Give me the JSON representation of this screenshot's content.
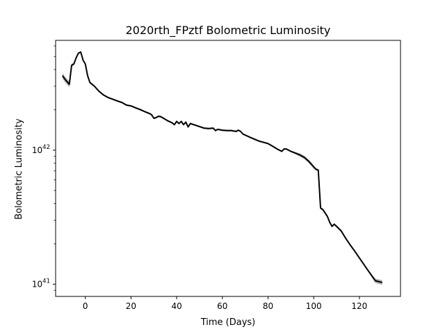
{
  "chart_data": {
    "type": "line",
    "title": "2020rth_FPztf Bolometric Luminosity",
    "xlabel": "Time (Days)",
    "ylabel": "Bolometric Luminosity",
    "xlim": [
      -13,
      138
    ],
    "ylim": [
      8.1e+40,
      6.6e+42
    ],
    "yscale": "log",
    "grid": false,
    "x_ticks": [
      0,
      20,
      40,
      60,
      80,
      100,
      120
    ],
    "y_ticks": [
      {
        "value": 1e+41,
        "base": "10",
        "exponent": "41"
      },
      {
        "value": 1e+42,
        "base": "10",
        "exponent": "42"
      }
    ],
    "line_color": "#000000",
    "band_color": "#9e9e9e",
    "series": [
      {
        "x": [
          -10,
          -9,
          -7,
          -6,
          -5,
          -4,
          -3,
          -2,
          -1,
          0,
          1,
          2,
          4,
          6,
          8,
          10,
          12,
          14,
          16,
          18,
          20,
          22,
          24,
          26,
          28,
          29,
          30,
          31,
          32,
          33,
          34,
          36,
          38,
          39,
          40,
          41,
          42,
          43,
          44,
          45,
          46,
          48,
          50,
          52,
          54,
          56,
          57,
          58,
          60,
          62,
          64,
          66,
          67,
          68,
          69,
          72,
          76,
          80,
          82,
          84,
          86,
          87,
          88,
          90,
          92,
          94,
          96,
          98,
          100,
          101,
          102,
          103,
          104,
          105,
          106,
          107,
          108,
          109,
          110,
          112,
          114,
          116,
          118,
          120,
          122,
          124,
          126,
          127,
          130
        ],
        "y": [
          3.6e+42,
          3.4e+42,
          3.1e+42,
          4.3e+42,
          4.4e+42,
          4.9e+42,
          5.3e+42,
          5.4e+42,
          4.7e+42,
          4.4e+42,
          3.6e+42,
          3.2e+42,
          3e+42,
          2.75e+42,
          2.58e+42,
          2.47e+42,
          2.4e+42,
          2.33e+42,
          2.27e+42,
          2.17e+42,
          2.14e+42,
          2.07e+42,
          2.01e+42,
          1.94e+42,
          1.88e+42,
          1.84e+42,
          1.73e+42,
          1.75e+42,
          1.79e+42,
          1.78e+42,
          1.74e+42,
          1.66e+42,
          1.6e+42,
          1.55e+42,
          1.64e+42,
          1.58e+42,
          1.64e+42,
          1.55e+42,
          1.62e+42,
          1.49e+42,
          1.58e+42,
          1.54e+42,
          1.5e+42,
          1.46e+42,
          1.45e+42,
          1.46e+42,
          1.4e+42,
          1.43e+42,
          1.41e+42,
          1.4e+42,
          1.4e+42,
          1.38e+42,
          1.41e+42,
          1.38e+42,
          1.32e+42,
          1.25e+42,
          1.17e+42,
          1.12e+42,
          1.07e+42,
          1.02e+42,
          9.8e+41,
          1.02e+42,
          1.02e+42,
          9.8e+41,
          9.5e+41,
          9.2e+41,
          8.8e+41,
          8.2e+41,
          7.5e+41,
          7.2e+41,
          7.1e+41,
          3.7e+41,
          3.6e+41,
          3.4e+41,
          3.2e+41,
          2.9e+41,
          2.7e+41,
          2.8e+41,
          2.7e+41,
          2.5e+41,
          2.2e+41,
          1.96e+41,
          1.76e+41,
          1.57e+41,
          1.4e+41,
          1.25e+41,
          1.12e+41,
          1.06e+41,
          1.03e+41
        ],
        "band_halfwidth_frac": [
          0.05,
          0.05,
          0.05,
          0.03,
          0.02,
          0.015,
          0.015,
          0.015,
          0.015,
          0.015,
          0.015,
          0.015,
          0.015,
          0.015,
          0.015,
          0.015,
          0.015,
          0.015,
          0.015,
          0.015,
          0.015,
          0.015,
          0.015,
          0.015,
          0.015,
          0.015,
          0.015,
          0.015,
          0.015,
          0.015,
          0.015,
          0.015,
          0.015,
          0.015,
          0.015,
          0.015,
          0.015,
          0.015,
          0.015,
          0.015,
          0.015,
          0.015,
          0.015,
          0.015,
          0.015,
          0.015,
          0.015,
          0.015,
          0.015,
          0.015,
          0.015,
          0.015,
          0.015,
          0.015,
          0.015,
          0.015,
          0.015,
          0.015,
          0.015,
          0.015,
          0.015,
          0.015,
          0.015,
          0.015,
          0.02,
          0.03,
          0.03,
          0.03,
          0.03,
          0.02,
          0.02,
          0.02,
          0.02,
          0.02,
          0.02,
          0.02,
          0.02,
          0.02,
          0.02,
          0.02,
          0.02,
          0.02,
          0.02,
          0.02,
          0.02,
          0.02,
          0.03,
          0.04,
          0.04
        ]
      }
    ]
  }
}
